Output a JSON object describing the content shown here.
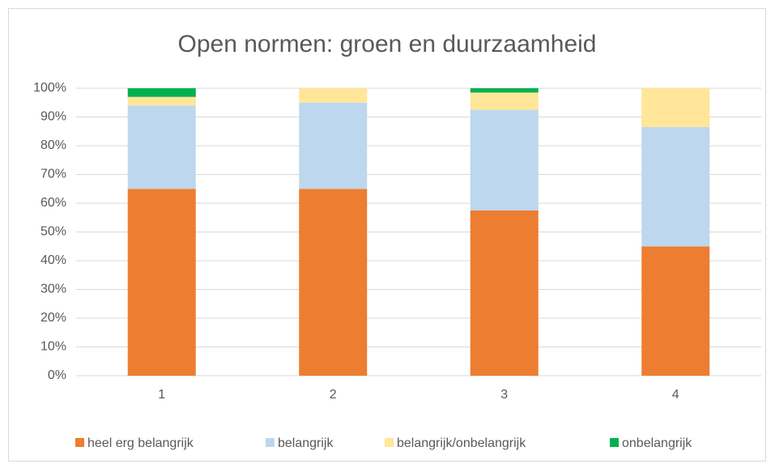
{
  "chart_data": {
    "type": "stacked_bar",
    "title": "Open normen: groen en duurzaamheid",
    "categories": [
      "1",
      "2",
      "3",
      "4"
    ],
    "series": [
      {
        "name": "heel erg belangrijk",
        "color": "#ED7D31",
        "values": [
          65,
          65,
          57.5,
          45
        ]
      },
      {
        "name": "belangrijk",
        "color": "#BDD7EE",
        "values": [
          29,
          30,
          35,
          41.5
        ]
      },
      {
        "name": "belangrijk/onbelangrijk",
        "color": "#FFE699",
        "values": [
          3,
          5,
          6,
          13.5
        ]
      },
      {
        "name": "onbelangrijk",
        "color": "#00B050",
        "values": [
          3,
          0,
          1.5,
          0
        ]
      }
    ],
    "ylim": [
      0,
      100
    ],
    "yticks": [
      {
        "value": 0,
        "label": "0%"
      },
      {
        "value": 10,
        "label": "10%"
      },
      {
        "value": 20,
        "label": "20%"
      },
      {
        "value": 30,
        "label": "30%"
      },
      {
        "value": 40,
        "label": "40%"
      },
      {
        "value": 50,
        "label": "50%"
      },
      {
        "value": 60,
        "label": "60%"
      },
      {
        "value": 70,
        "label": "70%"
      },
      {
        "value": 80,
        "label": "80%"
      },
      {
        "value": 90,
        "label": "90%"
      },
      {
        "value": 100,
        "label": "100%"
      }
    ],
    "grid": true,
    "legend": "bottom"
  }
}
